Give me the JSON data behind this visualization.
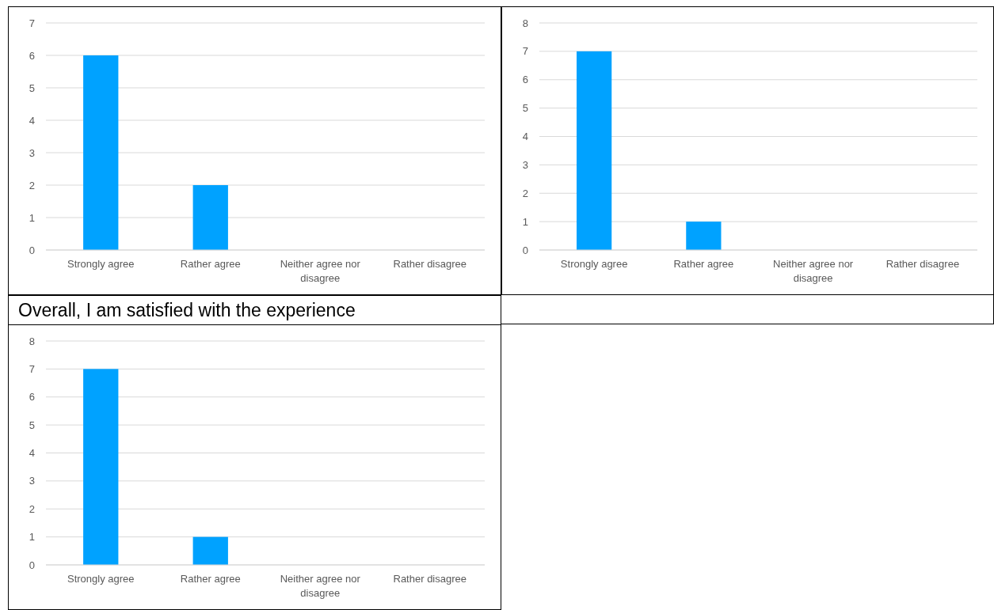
{
  "chart_data": [
    {
      "type": "bar",
      "categories": [
        "Strongly agree",
        "Rather agree",
        "Neither agree nor disagree",
        "Rather disagree"
      ],
      "values": [
        6,
        2,
        0,
        0
      ],
      "color": "#00a2ff",
      "ylim": [
        0,
        7
      ],
      "yticks": [
        0,
        1,
        2,
        3,
        4,
        5,
        6,
        7
      ],
      "grid": "y"
    },
    {
      "type": "bar",
      "categories": [
        "Strongly agree",
        "Rather agree",
        "Neither agree nor disagree",
        "Rather disagree"
      ],
      "values": [
        7,
        1,
        0,
        0
      ],
      "color": "#00a2ff",
      "ylim": [
        0,
        8
      ],
      "yticks": [
        0,
        1,
        2,
        3,
        4,
        5,
        6,
        7,
        8
      ],
      "grid": "y"
    },
    {
      "type": "bar",
      "title": "Overall, I am satisfied with the experience",
      "categories": [
        "Strongly agree",
        "Rather agree",
        "Neither agree nor disagree",
        "Rather disagree"
      ],
      "values": [
        7,
        1,
        0,
        0
      ],
      "color": "#00a2ff",
      "ylim": [
        0,
        8
      ],
      "yticks": [
        0,
        1,
        2,
        3,
        4,
        5,
        6,
        7,
        8
      ],
      "grid": "y"
    }
  ]
}
